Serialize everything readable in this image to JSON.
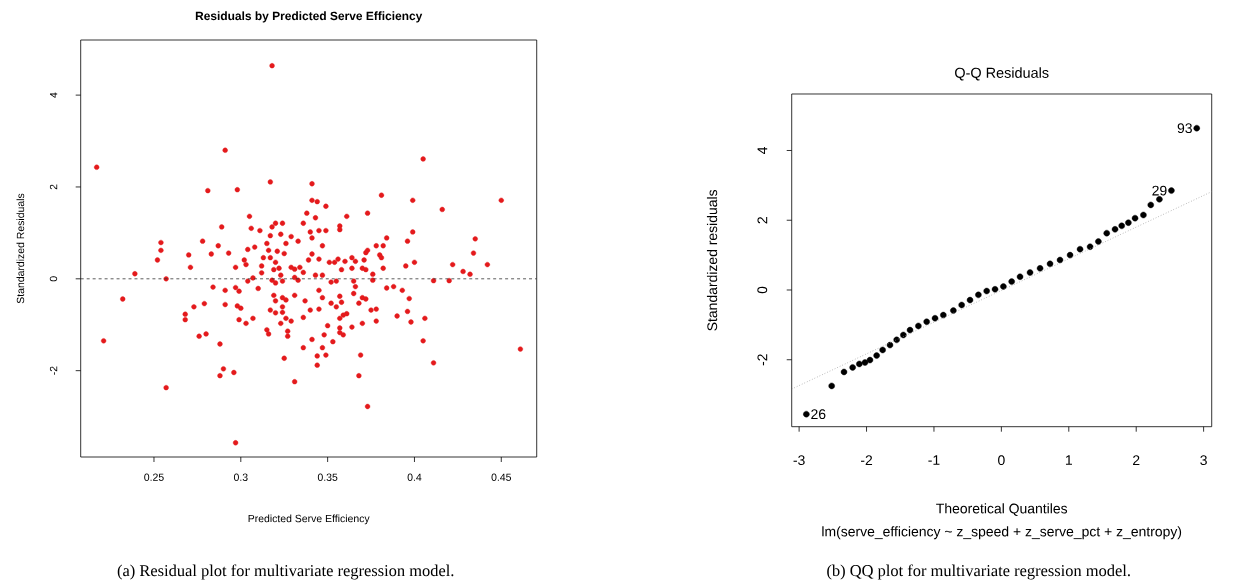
{
  "chart_data": [
    {
      "type": "scatter",
      "title": "Residuals by Predicted Serve Efficiency",
      "xlabel": "Predicted Serve Efficiency",
      "ylabel": "Standardized Residuals",
      "xlim": [
        0.2078,
        0.4704
      ],
      "ylim": [
        -3.88,
        5.2
      ],
      "xticks": [
        0.25,
        0.3,
        0.35,
        0.4,
        0.45
      ],
      "yticks": [
        -2,
        0,
        2,
        4
      ],
      "ref_lines": [
        {
          "axis": "y",
          "value": 0,
          "color": "#333333",
          "line_style": "dashed"
        }
      ],
      "annotations": [
        "(a) Residual plot for multivariate regression model."
      ],
      "series": [
        {
          "color": "#e41a1c",
          "marker": "circle",
          "x": [
            0.318,
            0.217,
            0.291,
            0.317,
            0.281,
            0.298,
            0.305,
            0.289,
            0.306,
            0.311,
            0.254,
            0.254,
            0.252,
            0.278,
            0.287,
            0.283,
            0.293,
            0.27,
            0.271,
            0.239,
            0.257,
            0.232,
            0.221,
            0.257,
            0.297,
            0.288,
            0.29,
            0.296,
            0.288,
            0.276,
            0.28,
            0.268,
            0.268,
            0.273,
            0.279,
            0.284,
            0.291,
            0.291,
            0.297,
            0.299,
            0.298,
            0.3,
            0.299,
            0.303,
            0.307,
            0.297,
            0.302,
            0.303,
            0.304,
            0.308,
            0.313,
            0.312,
            0.312,
            0.307,
            0.304,
            0.31,
            0.315,
            0.316,
            0.317,
            0.318,
            0.32,
            0.324,
            0.323,
            0.329,
            0.333,
            0.326,
            0.321,
            0.325,
            0.32,
            0.322,
            0.319,
            0.317,
            0.329,
            0.331,
            0.334,
            0.323,
            0.318,
            0.32,
            0.324,
            0.331,
            0.333,
            0.319,
            0.32,
            0.324,
            0.326,
            0.331,
            0.317,
            0.32,
            0.324,
            0.324,
            0.323,
            0.326,
            0.329,
            0.327,
            0.327,
            0.315,
            0.316,
            0.325,
            0.331,
            0.336,
            0.336,
            0.337,
            0.34,
            0.336,
            0.339,
            0.336,
            0.338,
            0.341,
            0.341,
            0.34,
            0.341,
            0.341,
            0.341,
            0.344,
            0.349,
            0.343,
            0.345,
            0.349,
            0.347,
            0.345,
            0.351,
            0.354,
            0.356,
            0.36,
            0.358,
            0.364,
            0.366,
            0.364,
            0.371,
            0.37,
            0.372,
            0.376,
            0.372,
            0.373,
            0.378,
            0.382,
            0.38,
            0.381,
            0.382,
            0.384,
            0.373,
            0.361,
            0.357,
            0.357,
            0.381,
            0.399,
            0.405,
            0.416,
            0.45,
            0.399,
            0.396,
            0.4,
            0.395,
            0.435,
            0.434,
            0.422,
            0.428,
            0.432,
            0.442,
            0.411,
            0.42,
            0.384,
            0.388,
            0.393,
            0.397,
            0.39,
            0.396,
            0.398,
            0.406,
            0.405,
            0.411,
            0.461,
            0.345,
            0.347,
            0.344,
            0.344,
            0.349,
            0.347,
            0.348,
            0.353,
            0.35,
            0.345,
            0.352,
            0.355,
            0.357,
            0.358,
            0.357,
            0.359,
            0.361,
            0.357,
            0.357,
            0.359,
            0.364,
            0.37,
            0.369,
            0.368,
            0.373,
            0.365,
            0.368,
            0.37,
            0.372,
            0.375,
            0.378,
            0.378,
            0.376,
            0.365,
            0.352,
            0.355,
            0.366,
            0.343,
            0.347
          ],
          "values": [
            4.64,
            2.43,
            2.8,
            2.11,
            1.92,
            1.94,
            1.36,
            1.13,
            1.1,
            1.05,
            0.79,
            0.62,
            0.41,
            0.82,
            0.72,
            0.54,
            0.56,
            0.52,
            0.25,
            0.11,
            0.0,
            -0.44,
            -1.35,
            -2.37,
            -3.57,
            -2.11,
            -1.96,
            -2.04,
            -1.42,
            -1.25,
            -1.2,
            -0.77,
            -0.89,
            -0.61,
            -0.54,
            -0.18,
            -0.25,
            -0.56,
            -0.19,
            -0.27,
            -0.59,
            -0.64,
            -0.89,
            -0.97,
            -0.86,
            0.25,
            0.41,
            0.31,
            0.64,
            0.69,
            0.46,
            0.28,
            0.13,
            0.02,
            -0.05,
            -0.21,
            0.77,
            0.62,
            0.94,
            1.13,
            1.21,
            1.21,
            0.97,
            0.92,
            0.82,
            0.77,
            0.6,
            0.55,
            0.36,
            0.23,
            0.2,
            0.46,
            0.25,
            0.21,
            0.25,
            0.08,
            -0.03,
            -0.09,
            -0.05,
            0.03,
            -0.03,
            -0.36,
            -0.48,
            -0.41,
            -0.46,
            -0.36,
            -0.68,
            -0.74,
            -0.61,
            -0.73,
            -0.97,
            -0.86,
            -0.92,
            -1.14,
            -1.25,
            -1.11,
            -1.2,
            -1.73,
            -2.24,
            -1.5,
            -0.84,
            -0.48,
            -0.68,
            0.14,
            0.41,
            1.21,
            1.43,
            1.71,
            2.07,
            1.02,
            0.89,
            0.54,
            -1.32,
            1.68,
            1.58,
            1.33,
            1.05,
            1.05,
            0.72,
            0.43,
            0.36,
            0.36,
            0.43,
            0.38,
            0.2,
            0.46,
            0.38,
            0.23,
            0.41,
            0.23,
            0.2,
            0.1,
            0.57,
            0.62,
            0.72,
            0.72,
            0.52,
            0.46,
            0.23,
            0.89,
            1.43,
            1.36,
            1.15,
            1.07,
            1.82,
            1.71,
            2.61,
            1.51,
            1.71,
            1.02,
            0.82,
            0.36,
            0.28,
            0.87,
            0.56,
            0.31,
            0.16,
            0.1,
            0.31,
            -0.04,
            -0.04,
            -0.2,
            -0.17,
            -0.25,
            -0.43,
            -0.81,
            -0.71,
            -0.94,
            -0.86,
            -1.35,
            -1.83,
            -1.53,
            -0.25,
            -0.41,
            -1.68,
            -1.88,
            -1.66,
            -1.5,
            -1.22,
            -1.37,
            -1.02,
            -0.66,
            -0.53,
            -0.61,
            -0.38,
            -0.51,
            -0.86,
            -0.79,
            -0.76,
            -1.07,
            -1.17,
            -1.22,
            -1.05,
            -0.97,
            -1.66,
            -2.11,
            -2.78,
            -0.32,
            -0.53,
            -0.41,
            -0.44,
            -0.68,
            -0.66,
            -0.92,
            -0.03,
            -0.05,
            -0.07,
            -0.05,
            -0.17,
            0.08,
            0.08
          ]
        }
      ]
    },
    {
      "type": "scatter",
      "title": "Q-Q Residuals",
      "xlabel": "Theoretical Quantiles",
      "ylabel": "Standardized residuals",
      "xlim": [
        -3.11,
        3.12
      ],
      "ylim": [
        -3.92,
        5.62
      ],
      "xticks": [
        -3,
        -2,
        -1,
        0,
        1,
        2,
        3
      ],
      "yticks": [
        -2,
        0,
        2,
        4
      ],
      "annotations": [
        {
          "text": "93",
          "x": 2.898,
          "y": 4.64
        },
        {
          "text": "29",
          "x": 2.522,
          "y": 2.85
        },
        {
          "text": "26",
          "x": -2.893,
          "y": -3.56
        },
        "lm(serve_efficiency ~ z_speed + z_serve_pct + z_entropy)",
        "(b) QQ plot for multivariate regression model."
      ],
      "series": [
        {
          "color": "#000000",
          "marker": "circle",
          "x": [
            -2.893,
            -2.517,
            -2.334,
            -2.206,
            -2.107,
            -2.023,
            -1.949,
            -1.85,
            -1.761,
            -1.652,
            -1.553,
            -1.454,
            -1.355,
            -1.231,
            -1.108,
            -0.984,
            -0.861,
            -0.712,
            -0.589,
            -0.465,
            -0.341,
            -0.218,
            -0.094,
            0.03,
            0.153,
            0.277,
            0.425,
            0.574,
            0.722,
            0.87,
            1.019,
            1.167,
            1.316,
            1.439,
            1.563,
            1.686,
            1.785,
            1.884,
            1.983,
            2.107,
            2.216,
            2.344,
            2.522,
            2.898
          ],
          "values": [
            -3.56,
            -2.75,
            -2.35,
            -2.22,
            -2.12,
            -2.08,
            -2.01,
            -1.88,
            -1.72,
            -1.58,
            -1.43,
            -1.29,
            -1.15,
            -1.03,
            -0.91,
            -0.81,
            -0.72,
            -0.59,
            -0.43,
            -0.29,
            -0.14,
            -0.03,
            0.02,
            0.1,
            0.24,
            0.38,
            0.5,
            0.62,
            0.75,
            0.86,
            1.0,
            1.17,
            1.24,
            1.39,
            1.63,
            1.74,
            1.84,
            1.93,
            2.06,
            2.15,
            2.44,
            2.6,
            2.85,
            4.64
          ]
        },
        {
          "type": "line",
          "color": "#999999",
          "line_style": "dotted",
          "marker": "none",
          "x": [
            -3.11,
            3.12
          ],
          "values": [
            -2.84,
            2.82
          ]
        }
      ]
    }
  ]
}
